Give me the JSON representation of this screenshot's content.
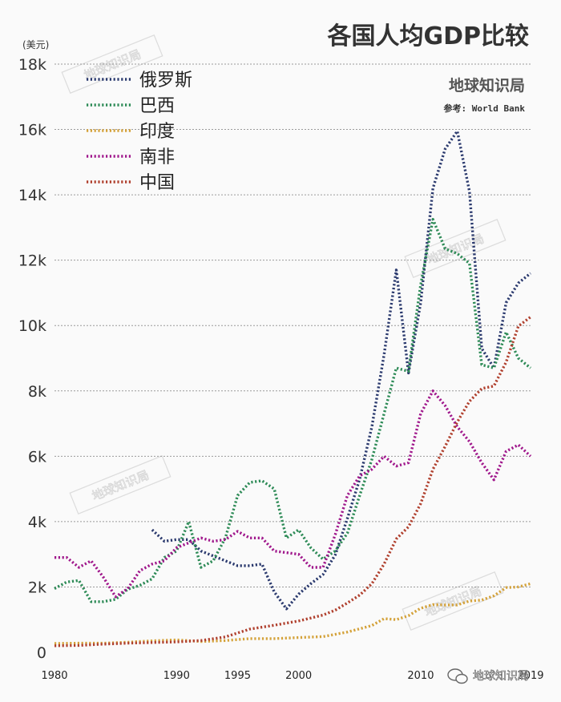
{
  "unit_label": "(美元)",
  "brand": "地球知识局",
  "source": "参考: World Bank",
  "footer": "地球知识局",
  "colors": {
    "background": "#fafafa",
    "grid": "#9a9a9a",
    "russia": "#2b3a6e",
    "brazil": "#2e8b57",
    "india": "#d4a23a",
    "south_africa": "#a0188c",
    "china": "#b0402e"
  },
  "chart_data": {
    "type": "line",
    "title": "各国人均GDP比较",
    "xlabel": "",
    "ylabel": "(美元)",
    "xlim": [
      1980,
      2019
    ],
    "ylim": [
      0,
      18000
    ],
    "x_ticks": [
      {
        "value": 1980,
        "label": "1980"
      },
      {
        "value": 1990,
        "label": "1990"
      },
      {
        "value": 1995,
        "label": "1995"
      },
      {
        "value": 2000,
        "label": "2000"
      },
      {
        "value": 2010,
        "label": "2010"
      },
      {
        "value": 2019,
        "label": "2019"
      }
    ],
    "y_ticks": [
      {
        "value": 0,
        "label": "0"
      },
      {
        "value": 2000,
        "label": "2k"
      },
      {
        "value": 4000,
        "label": "4k"
      },
      {
        "value": 6000,
        "label": "6k"
      },
      {
        "value": 8000,
        "label": "8k"
      },
      {
        "value": 10000,
        "label": "10k"
      },
      {
        "value": 12000,
        "label": "12k"
      },
      {
        "value": 14000,
        "label": "14k"
      },
      {
        "value": 16000,
        "label": "16k"
      },
      {
        "value": 18000,
        "label": "18k"
      }
    ],
    "grid": true,
    "legend_position": "top-left",
    "series": [
      {
        "key": "russia",
        "name": "俄罗斯",
        "x": [
          1988,
          1989,
          1990,
          1991,
          1992,
          1993,
          1994,
          1995,
          1996,
          1997,
          1998,
          1999,
          2000,
          2001,
          2002,
          2003,
          2004,
          2005,
          2006,
          2007,
          2008,
          2009,
          2010,
          2011,
          2012,
          2013,
          2014,
          2015,
          2016,
          2017,
          2018,
          2019
        ],
        "y": [
          3750,
          3400,
          3450,
          3450,
          3100,
          2950,
          2800,
          2650,
          2650,
          2700,
          1850,
          1330,
          1780,
          2100,
          2380,
          2980,
          4100,
          5300,
          6900,
          9100,
          11700,
          8550,
          10700,
          14200,
          15400,
          15950,
          14100,
          9300,
          8700,
          10700,
          11300,
          11600
        ]
      },
      {
        "key": "brazil",
        "name": "巴西",
        "x": [
          1980,
          1981,
          1982,
          1983,
          1984,
          1985,
          1986,
          1987,
          1988,
          1989,
          1990,
          1991,
          1992,
          1993,
          1994,
          1995,
          1996,
          1997,
          1998,
          1999,
          2000,
          2001,
          2002,
          2003,
          2004,
          2005,
          2006,
          2007,
          2008,
          2009,
          2010,
          2011,
          2012,
          2013,
          2014,
          2015,
          2016,
          2017,
          2018,
          2019
        ],
        "y": [
          1950,
          2150,
          2200,
          1550,
          1550,
          1620,
          1930,
          2050,
          2250,
          2900,
          3100,
          4000,
          2600,
          2800,
          3500,
          4800,
          5200,
          5250,
          5000,
          3500,
          3750,
          3200,
          2850,
          3100,
          3650,
          4800,
          5900,
          7300,
          8700,
          8600,
          11250,
          13250,
          12350,
          12200,
          11900,
          8800,
          8700,
          9800,
          9000,
          8700
        ]
      },
      {
        "key": "india",
        "name": "印度",
        "x": [
          1980,
          1982,
          1984,
          1986,
          1988,
          1990,
          1992,
          1994,
          1996,
          1998,
          2000,
          2002,
          2004,
          2006,
          2007,
          2008,
          2009,
          2010,
          2011,
          2012,
          2013,
          2014,
          2015,
          2016,
          2017,
          2018,
          2019
        ],
        "y": [
          270,
          280,
          280,
          310,
          350,
          380,
          330,
          360,
          420,
          420,
          450,
          480,
          620,
          820,
          1030,
          1000,
          1120,
          1350,
          1460,
          1450,
          1450,
          1570,
          1600,
          1730,
          1980,
          2000,
          2100
        ]
      },
      {
        "key": "south_africa",
        "name": "南非",
        "x": [
          1980,
          1981,
          1982,
          1983,
          1984,
          1985,
          1986,
          1987,
          1988,
          1989,
          1990,
          1991,
          1992,
          1993,
          1994,
          1995,
          1996,
          1997,
          1998,
          1999,
          2000,
          2001,
          2002,
          2003,
          2004,
          2005,
          2006,
          2007,
          2008,
          2009,
          2010,
          2011,
          2012,
          2013,
          2014,
          2015,
          2016,
          2017,
          2018,
          2019
        ],
        "y": [
          2900,
          2900,
          2600,
          2800,
          2300,
          1700,
          1950,
          2500,
          2700,
          2800,
          3200,
          3350,
          3500,
          3400,
          3450,
          3700,
          3500,
          3500,
          3100,
          3050,
          3000,
          2600,
          2600,
          3600,
          4800,
          5400,
          5600,
          6000,
          5700,
          5800,
          7300,
          8000,
          7550,
          6900,
          6450,
          5800,
          5280,
          6150,
          6350,
          6000
        ]
      },
      {
        "key": "china",
        "name": "中国",
        "x": [
          1980,
          1982,
          1984,
          1986,
          1988,
          1990,
          1992,
          1994,
          1996,
          1998,
          2000,
          2002,
          2003,
          2004,
          2005,
          2006,
          2007,
          2008,
          2009,
          2010,
          2011,
          2012,
          2013,
          2014,
          2015,
          2016,
          2017,
          2018,
          2019
        ],
        "y": [
          200,
          210,
          250,
          280,
          300,
          320,
          360,
          470,
          710,
          830,
          960,
          1140,
          1290,
          1510,
          1750,
          2100,
          2700,
          3470,
          3840,
          4550,
          5600,
          6300,
          7050,
          7680,
          8070,
          8150,
          8880,
          9980,
          10260
        ]
      }
    ]
  }
}
